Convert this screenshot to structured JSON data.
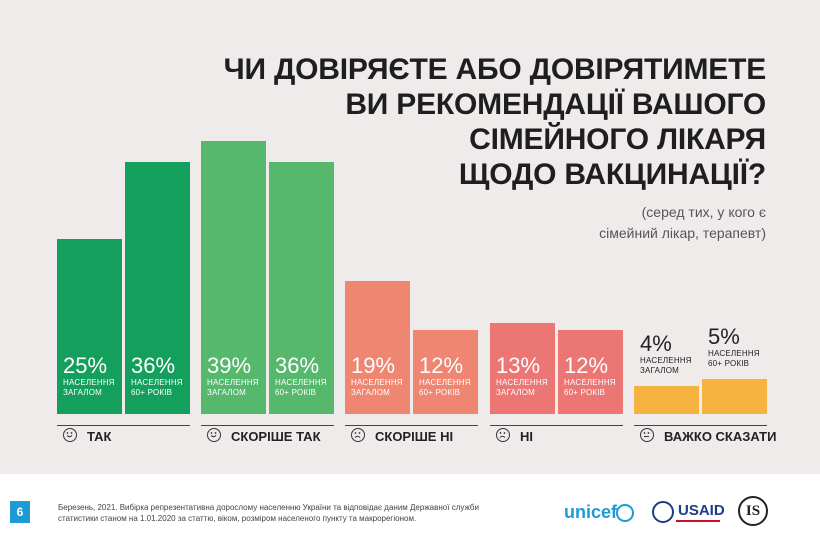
{
  "title": [
    "ЧИ ДОВІРЯЄТЕ АБО ДОВІРЯТИМЕТЕ",
    "ВИ РЕКОМЕНДАЦІЇ ВАШОГО",
    "СІМЕЙНОГО ЛІКАРЯ",
    "ЩОДО ВАКЦИНАЦІЇ?"
  ],
  "subtitle": [
    "(серед тих, у кого є",
    "сімейний лікар, терапевт)"
  ],
  "colors": {
    "tak": "#14a05c",
    "skorishe_tak": "#56b86c",
    "skorishe_ni": "#ee8672",
    "ni": "#ec7674",
    "vazhko": "#f6b340"
  },
  "chart_data": {
    "type": "bar",
    "categories": [
      "ТАК",
      "СКОРІШЕ ТАК",
      "СКОРІШЕ НІ",
      "НІ",
      "ВАЖКО СКАЗАТИ"
    ],
    "series": [
      {
        "name": "НАСЕЛЕННЯ ЗАГАЛОМ",
        "values": [
          25,
          39,
          19,
          13,
          4
        ]
      },
      {
        "name": "НАСЕЛЕННЯ 60+ РОКІВ",
        "values": [
          36,
          36,
          12,
          12,
          5
        ]
      }
    ],
    "series_labels": [
      [
        "НАСЕЛЕННЯ",
        "ЗАГАЛОМ"
      ],
      [
        "НАСЕЛЕННЯ",
        "60+ РОКІВ"
      ]
    ],
    "value_labels": [
      [
        "25%",
        "36%"
      ],
      [
        "39%",
        "36%"
      ],
      [
        "19%",
        "12%"
      ],
      [
        "13%",
        "12%"
      ],
      [
        "4%",
        "5%"
      ]
    ],
    "faces": [
      "smile",
      "smile",
      "frown",
      "frown",
      "neutral"
    ],
    "unit": "%"
  },
  "footer": {
    "page_number": "6",
    "footnote": "Березень, 2021. Вибірка репрезентативна дорослому населенню України та відповідає даним Державної служби статистики станом на 1.01.2020 за статтю, віком, розміром населеного пункту та макрорегіоном.",
    "logos": [
      "unicef",
      "USAID",
      "IS"
    ]
  }
}
